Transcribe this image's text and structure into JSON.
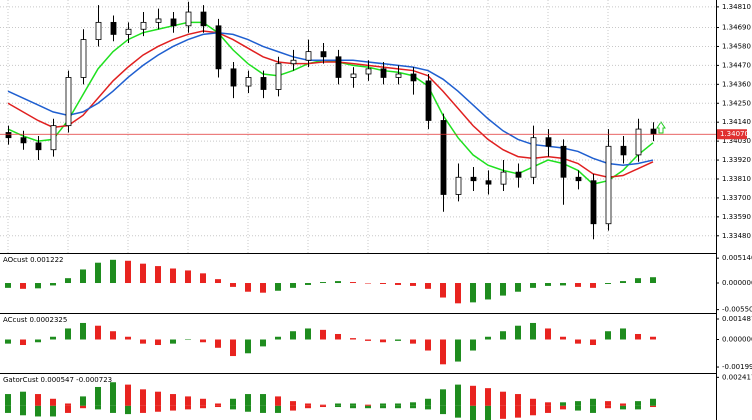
{
  "chart_data": [
    {
      "type": "candlestick",
      "opens": [
        1.3408,
        1.3405,
        1.3402,
        1.3398,
        1.3412,
        1.344,
        1.3462,
        1.3472,
        1.3465,
        1.3468,
        1.3472,
        1.3474,
        1.347,
        1.3478,
        1.347,
        1.3445,
        1.3435,
        1.344,
        1.3433,
        1.3448,
        1.345,
        1.3455,
        1.3452,
        1.344,
        1.3442,
        1.3445,
        1.344,
        1.3442,
        1.3438,
        1.3415,
        1.3372,
        1.3382,
        1.338,
        1.3378,
        1.3385,
        1.3382,
        1.3405,
        1.34,
        1.3382,
        1.338,
        1.3355,
        1.34,
        1.3395,
        1.341
      ],
      "highs": [
        1.3412,
        1.3409,
        1.3406,
        1.3416,
        1.3444,
        1.3468,
        1.3482,
        1.3476,
        1.3472,
        1.3478,
        1.348,
        1.3478,
        1.3484,
        1.3482,
        1.3474,
        1.3449,
        1.3444,
        1.3444,
        1.3452,
        1.3456,
        1.3462,
        1.346,
        1.3456,
        1.3446,
        1.345,
        1.3449,
        1.3447,
        1.3446,
        1.3442,
        1.3419,
        1.339,
        1.3388,
        1.3386,
        1.3392,
        1.339,
        1.3412,
        1.341,
        1.3404,
        1.3386,
        1.3384,
        1.341,
        1.3406,
        1.3416,
        1.3414
      ],
      "lows": [
        1.3401,
        1.3398,
        1.3392,
        1.3394,
        1.3408,
        1.3436,
        1.3458,
        1.3461,
        1.346,
        1.3464,
        1.3468,
        1.3466,
        1.3466,
        1.3466,
        1.344,
        1.3428,
        1.3431,
        1.3428,
        1.3429,
        1.3444,
        1.3446,
        1.3448,
        1.3436,
        1.3434,
        1.3438,
        1.3436,
        1.3436,
        1.343,
        1.341,
        1.3362,
        1.3368,
        1.3374,
        1.3372,
        1.3374,
        1.3376,
        1.3378,
        1.3394,
        1.3366,
        1.3375,
        1.3346,
        1.3351,
        1.339,
        1.3391,
        1.3403
      ],
      "closes": [
        1.3405,
        1.3402,
        1.3398,
        1.3412,
        1.344,
        1.3462,
        1.3472,
        1.3465,
        1.3468,
        1.3472,
        1.3474,
        1.347,
        1.3478,
        1.347,
        1.3445,
        1.3435,
        1.344,
        1.3433,
        1.3448,
        1.345,
        1.3455,
        1.3452,
        1.344,
        1.3442,
        1.3445,
        1.344,
        1.3442,
        1.3438,
        1.3415,
        1.3372,
        1.3382,
        1.338,
        1.3378,
        1.3385,
        1.3382,
        1.3405,
        1.34,
        1.3382,
        1.338,
        1.3355,
        1.34,
        1.3395,
        1.341,
        1.3407
      ],
      "up_color": "#ffffff",
      "down_color": "#000000",
      "lines": [
        {
          "color": "#1fe01f",
          "values": [
            1.341,
            1.3406,
            1.3403,
            1.3404,
            1.3415,
            1.343,
            1.3445,
            1.3455,
            1.3462,
            1.3466,
            1.3468,
            1.347,
            1.3472,
            1.3472,
            1.3466,
            1.3456,
            1.3448,
            1.3442,
            1.3441,
            1.3444,
            1.3448,
            1.345,
            1.3449,
            1.3447,
            1.3446,
            1.3444,
            1.3443,
            1.3441,
            1.3435,
            1.3418,
            1.3405,
            1.3395,
            1.3389,
            1.3386,
            1.3384,
            1.3388,
            1.3392,
            1.339,
            1.3386,
            1.3378,
            1.338,
            1.3386,
            1.3395,
            1.3402
          ]
        },
        {
          "color": "#e02020",
          "values": [
            1.3425,
            1.342,
            1.3415,
            1.3411,
            1.3412,
            1.3418,
            1.3428,
            1.3438,
            1.3446,
            1.3453,
            1.3458,
            1.3462,
            1.3465,
            1.3467,
            1.3466,
            1.3462,
            1.3457,
            1.3452,
            1.3449,
            1.3448,
            1.3448,
            1.3449,
            1.3449,
            1.3448,
            1.3447,
            1.3446,
            1.3445,
            1.3444,
            1.3441,
            1.3432,
            1.3422,
            1.3412,
            1.3404,
            1.3398,
            1.3394,
            1.3393,
            1.3394,
            1.3393,
            1.339,
            1.3384,
            1.3382,
            1.3383,
            1.3387,
            1.3391
          ]
        },
        {
          "color": "#1f5fd0",
          "values": [
            1.3432,
            1.3428,
            1.3424,
            1.342,
            1.3418,
            1.342,
            1.3425,
            1.3432,
            1.344,
            1.3447,
            1.3453,
            1.3458,
            1.3462,
            1.3465,
            1.3466,
            1.3465,
            1.3462,
            1.3458,
            1.3455,
            1.3452,
            1.345,
            1.345,
            1.345,
            1.345,
            1.3449,
            1.3448,
            1.3447,
            1.3446,
            1.3444,
            1.3439,
            1.3432,
            1.3424,
            1.3416,
            1.3409,
            1.3404,
            1.3401,
            1.34,
            1.3399,
            1.3397,
            1.3393,
            1.339,
            1.3389,
            1.339,
            1.3392
          ]
        }
      ],
      "ylim": [
        1.3338,
        1.3485
      ],
      "yticks": [
        {
          "value": 1.3481,
          "label": "1.34810"
        },
        {
          "value": 1.3469,
          "label": "1.34690"
        },
        {
          "value": 1.3458,
          "label": "1.34580"
        },
        {
          "value": 1.3447,
          "label": "1.34470"
        },
        {
          "value": 1.3436,
          "label": "1.34360"
        },
        {
          "value": 1.3425,
          "label": "1.34250"
        },
        {
          "value": 1.3414,
          "label": "1.34140"
        },
        {
          "value": 1.3403,
          "label": "1.34030"
        },
        {
          "value": 1.3392,
          "label": "1.33920"
        },
        {
          "value": 1.3381,
          "label": "1.33810"
        },
        {
          "value": 1.337,
          "label": "1.33700"
        },
        {
          "value": 1.3359,
          "label": "1.33590"
        },
        {
          "value": 1.3348,
          "label": "1.33480"
        }
      ],
      "last_price": {
        "value": 1.3407,
        "label": "1.34070"
      },
      "last_price_color": "#e03030",
      "grid": true
    },
    {
      "type": "histogram",
      "title": "AOcust 0.001222",
      "values": [
        -0.001,
        -0.0012,
        -0.0011,
        -0.0005,
        0.001,
        0.0028,
        0.0042,
        0.0048,
        0.0046,
        0.004,
        0.0035,
        0.003,
        0.0026,
        0.002,
        0.0008,
        -0.0008,
        -0.0018,
        -0.002,
        -0.0016,
        -0.001,
        -0.0004,
        0.0002,
        0.0004,
        0.0002,
        0.0,
        -0.0002,
        -0.0004,
        -0.0006,
        -0.0012,
        -0.003,
        -0.0042,
        -0.004,
        -0.0034,
        -0.0026,
        -0.0018,
        -0.001,
        -0.0006,
        -0.0005,
        -0.0008,
        -0.001,
        -0.0002,
        0.0004,
        0.001,
        0.0012
      ],
      "up_color": "#1e8c1e",
      "down_color": "#e8231f",
      "ylim": [
        -0.0062,
        0.006
      ],
      "yticks": [
        {
          "value": 0.00514,
          "label": "0.005140"
        },
        {
          "value": 0,
          "label": "0.000000"
        },
        {
          "value": -0.005501,
          "label": "-0.005501"
        }
      ]
    },
    {
      "type": "histogram",
      "title": "ACcust 0.0002325",
      "values": [
        -0.0003,
        -0.0004,
        -0.0002,
        0.0002,
        0.0008,
        0.0012,
        0.001,
        0.0006,
        0.0002,
        -0.0003,
        -0.0004,
        -0.0003,
        0.0,
        -0.0002,
        -0.0006,
        -0.0012,
        -0.001,
        -0.0005,
        0.0002,
        0.0006,
        0.0008,
        0.0007,
        0.0004,
        0.0001,
        -0.0001,
        -0.0002,
        -0.0001,
        -0.0003,
        -0.0008,
        -0.0018,
        -0.0016,
        -0.0008,
        0.0002,
        0.0006,
        0.001,
        0.0012,
        0.0008,
        0.0002,
        -0.0003,
        -0.0004,
        0.0006,
        0.0008,
        0.0004,
        0.0002
      ],
      "up_color": "#1e8c1e",
      "down_color": "#e8231f",
      "ylim": [
        -0.00243,
        0.00185
      ],
      "yticks": [
        {
          "value": 0.0014879,
          "label": "0.0014879"
        },
        {
          "value": 0,
          "label": "0.000000"
        },
        {
          "value": -0.0019978,
          "label": "-0.0019978"
        }
      ]
    },
    {
      "type": "gator",
      "title": "GatorCust 0.000547 -0.000723",
      "upper": [
        0.001,
        0.0012,
        0.001,
        0.0006,
        0.0002,
        0.0008,
        0.0016,
        0.002,
        0.0018,
        0.0014,
        0.0012,
        0.001,
        0.0008,
        0.0006,
        0.0002,
        0.0006,
        0.001,
        0.001,
        0.0008,
        0.0004,
        0.0002,
        0.0001,
        0.0002,
        0.0002,
        0.0001,
        0.0002,
        0.0002,
        0.0003,
        0.0006,
        0.0014,
        0.0018,
        0.0017,
        0.0015,
        0.0012,
        0.001,
        0.0006,
        0.0003,
        0.0003,
        0.0004,
        0.0006,
        0.0004,
        0.0002,
        0.0004,
        0.0006
      ],
      "lower": [
        -0.0006,
        -0.0008,
        -0.0009,
        -0.0009,
        -0.0006,
        -0.0002,
        -0.0003,
        -0.0006,
        -0.0007,
        -0.0006,
        -0.0005,
        -0.0004,
        -0.0003,
        -0.0002,
        -0.0001,
        -0.0003,
        -0.0005,
        -0.0006,
        -0.0006,
        -0.0004,
        -0.0002,
        -0.0001,
        -0.0001,
        -0.0002,
        -0.0002,
        -0.0002,
        -0.0002,
        -0.0002,
        -0.0003,
        -0.0007,
        -0.001,
        -0.0012,
        -0.0012,
        -0.0011,
        -0.001,
        -0.0008,
        -0.0006,
        -0.0003,
        -0.0004,
        -0.0006,
        -0.0002,
        -0.0003,
        -0.0003,
        -0.0001
      ],
      "up_color": "#1e8c1e",
      "down_color": "#e8231f",
      "ylim": [
        -0.0012,
        0.0027
      ],
      "yticks": [
        {
          "value": 0.002417,
          "label": "0.002417"
        }
      ]
    }
  ]
}
